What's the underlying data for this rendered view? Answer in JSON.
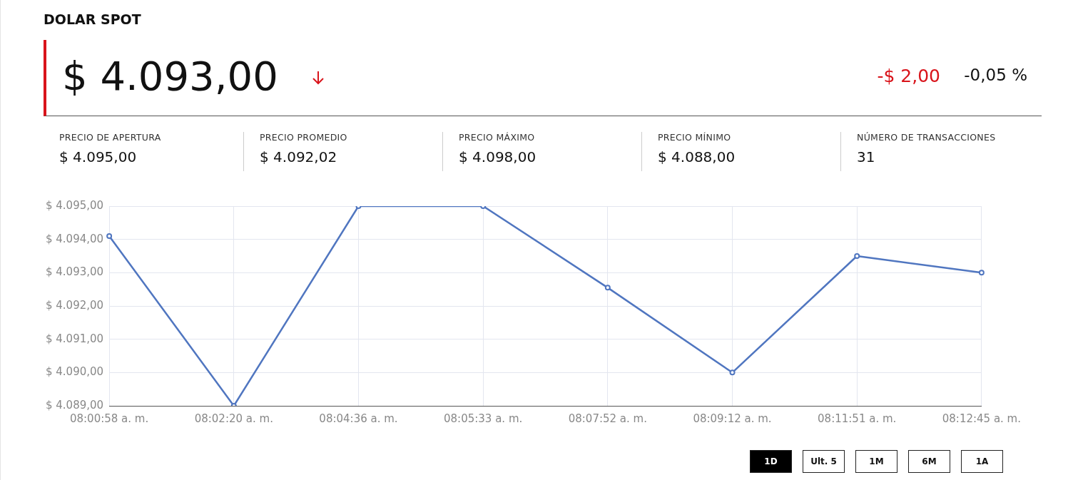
{
  "chart_data": {
    "type": "line",
    "title": "DOLAR SPOT",
    "categories": [
      "08:00:58 a. m.",
      "08:02:20 a. m.",
      "08:04:36 a. m.",
      "08:05:33 a. m.",
      "08:07:52 a. m.",
      "08:09:12 a. m.",
      "08:11:51 a. m.",
      "08:12:45 a. m."
    ],
    "series": [
      {
        "color": "#5076c0",
        "values": [
          4094.1,
          4089.0,
          4095.0,
          4095.0,
          4092.55,
          4090.0,
          4093.5,
          4093.0
        ]
      }
    ],
    "ylim": [
      4089,
      4095
    ],
    "yticks": [
      {
        "value": 4089,
        "label": "$ 4.089,00"
      },
      {
        "value": 4090,
        "label": "$ 4.090,00"
      },
      {
        "value": 4091,
        "label": "$ 4.091,00"
      },
      {
        "value": 4092,
        "label": "$ 4.092,00"
      },
      {
        "value": 4093,
        "label": "$ 4.093,00"
      },
      {
        "value": 4094,
        "label": "$ 4.094,00"
      },
      {
        "value": 4095,
        "label": "$ 4.095,00"
      }
    ],
    "grid": true,
    "legend": false,
    "marker": "circle",
    "line_style": "solid",
    "annotations": [
      "$ 4.093,00",
      "-$ 2,00",
      "-0,05 %",
      "PRECIO DE APERTURA",
      "$ 4.095,00",
      "PRECIO PROMEDIO",
      "$ 4.092,02",
      "PRECIO MÁXIMO",
      "$ 4.098,00",
      "PRECIO MÍNIMO",
      "$ 4.088,00",
      "NÚMERO DE TRANSACCIONES",
      "31",
      "1D",
      "Ult. 5",
      "1M",
      "6M",
      "1A"
    ]
  }
}
